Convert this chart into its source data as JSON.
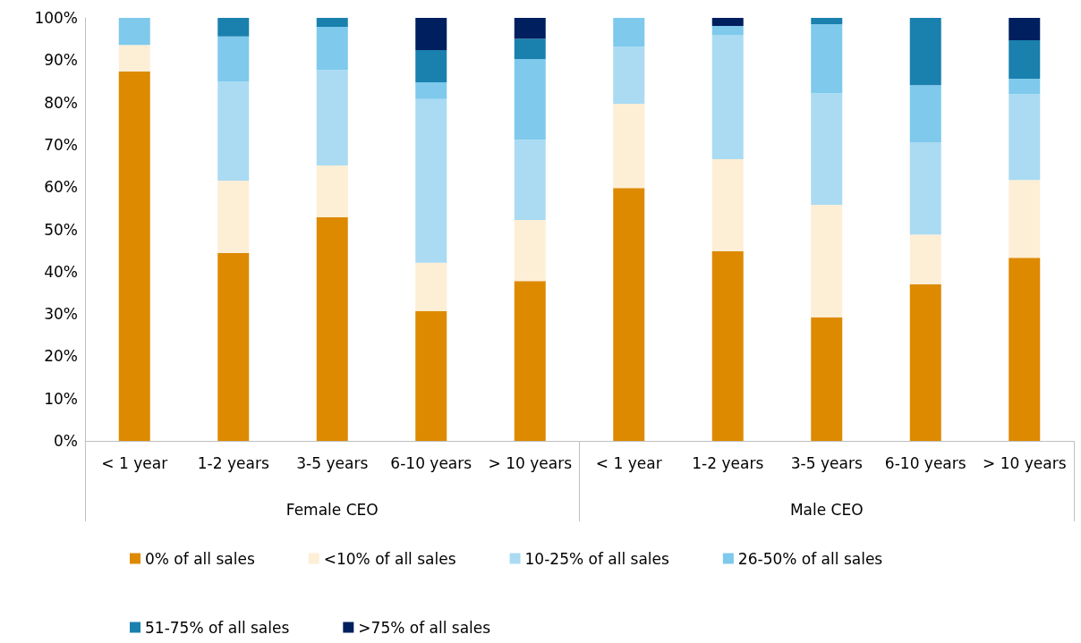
{
  "chart_data": {
    "type": "bar",
    "stacked": true,
    "categories": [
      "< 1 year",
      "1-2 years",
      "3-5 years",
      "6-10 years",
      "> 10 years",
      "< 1 year",
      "1-2 years",
      "3-5 years",
      "6-10 years",
      "> 10 years"
    ],
    "annotations": [
      "Female CEO",
      "Male CEO"
    ],
    "series": [
      {
        "name": "0% of all sales",
        "color": "#dd8a00",
        "values": [
          87.3,
          44.4,
          52.9,
          30.7,
          37.8,
          59.8,
          44.8,
          29.2,
          37.0,
          43.3
        ]
      },
      {
        "name": "<10% of all sales",
        "color": "#fdeed6",
        "values": [
          6.3,
          17.1,
          12.2,
          11.4,
          14.4,
          19.9,
          21.8,
          26.6,
          11.8,
          18.4
        ]
      },
      {
        "name": "10-25% of all sales",
        "color": "#aadbf2",
        "values": [
          0,
          23.5,
          22.6,
          38.7,
          19.0,
          13.5,
          29.4,
          26.4,
          21.8,
          20.3
        ]
      },
      {
        "name": "26-50% of all sales",
        "color": "#7ec9ec",
        "values": [
          6.4,
          10.6,
          10.2,
          4.0,
          19.1,
          6.8,
          2.1,
          16.3,
          13.5,
          3.6
        ]
      },
      {
        "name": "51-75% of all sales",
        "color": "#1a80ad",
        "values": [
          0,
          4.4,
          2.1,
          7.6,
          4.8,
          0,
          0,
          1.5,
          15.9,
          9.1
        ]
      },
      {
        "name": ">75% of all sales",
        "color": "#001f5f",
        "values": [
          0,
          0,
          0,
          7.6,
          4.9,
          0,
          1.9,
          0,
          0,
          5.3
        ]
      }
    ],
    "ylim": [
      0,
      100
    ],
    "yticks": [
      {
        "value": 0,
        "label": "0%"
      },
      {
        "value": 10,
        "label": "10%"
      },
      {
        "value": 20,
        "label": "20%"
      },
      {
        "value": 30,
        "label": "30%"
      },
      {
        "value": 40,
        "label": "40%"
      },
      {
        "value": 50,
        "label": "50%"
      },
      {
        "value": 60,
        "label": "60%"
      },
      {
        "value": 70,
        "label": "70%"
      },
      {
        "value": 80,
        "label": "80%"
      },
      {
        "value": 90,
        "label": "90%"
      },
      {
        "value": 100,
        "label": "100%"
      }
    ],
    "grid": false,
    "legend": "bottom"
  }
}
